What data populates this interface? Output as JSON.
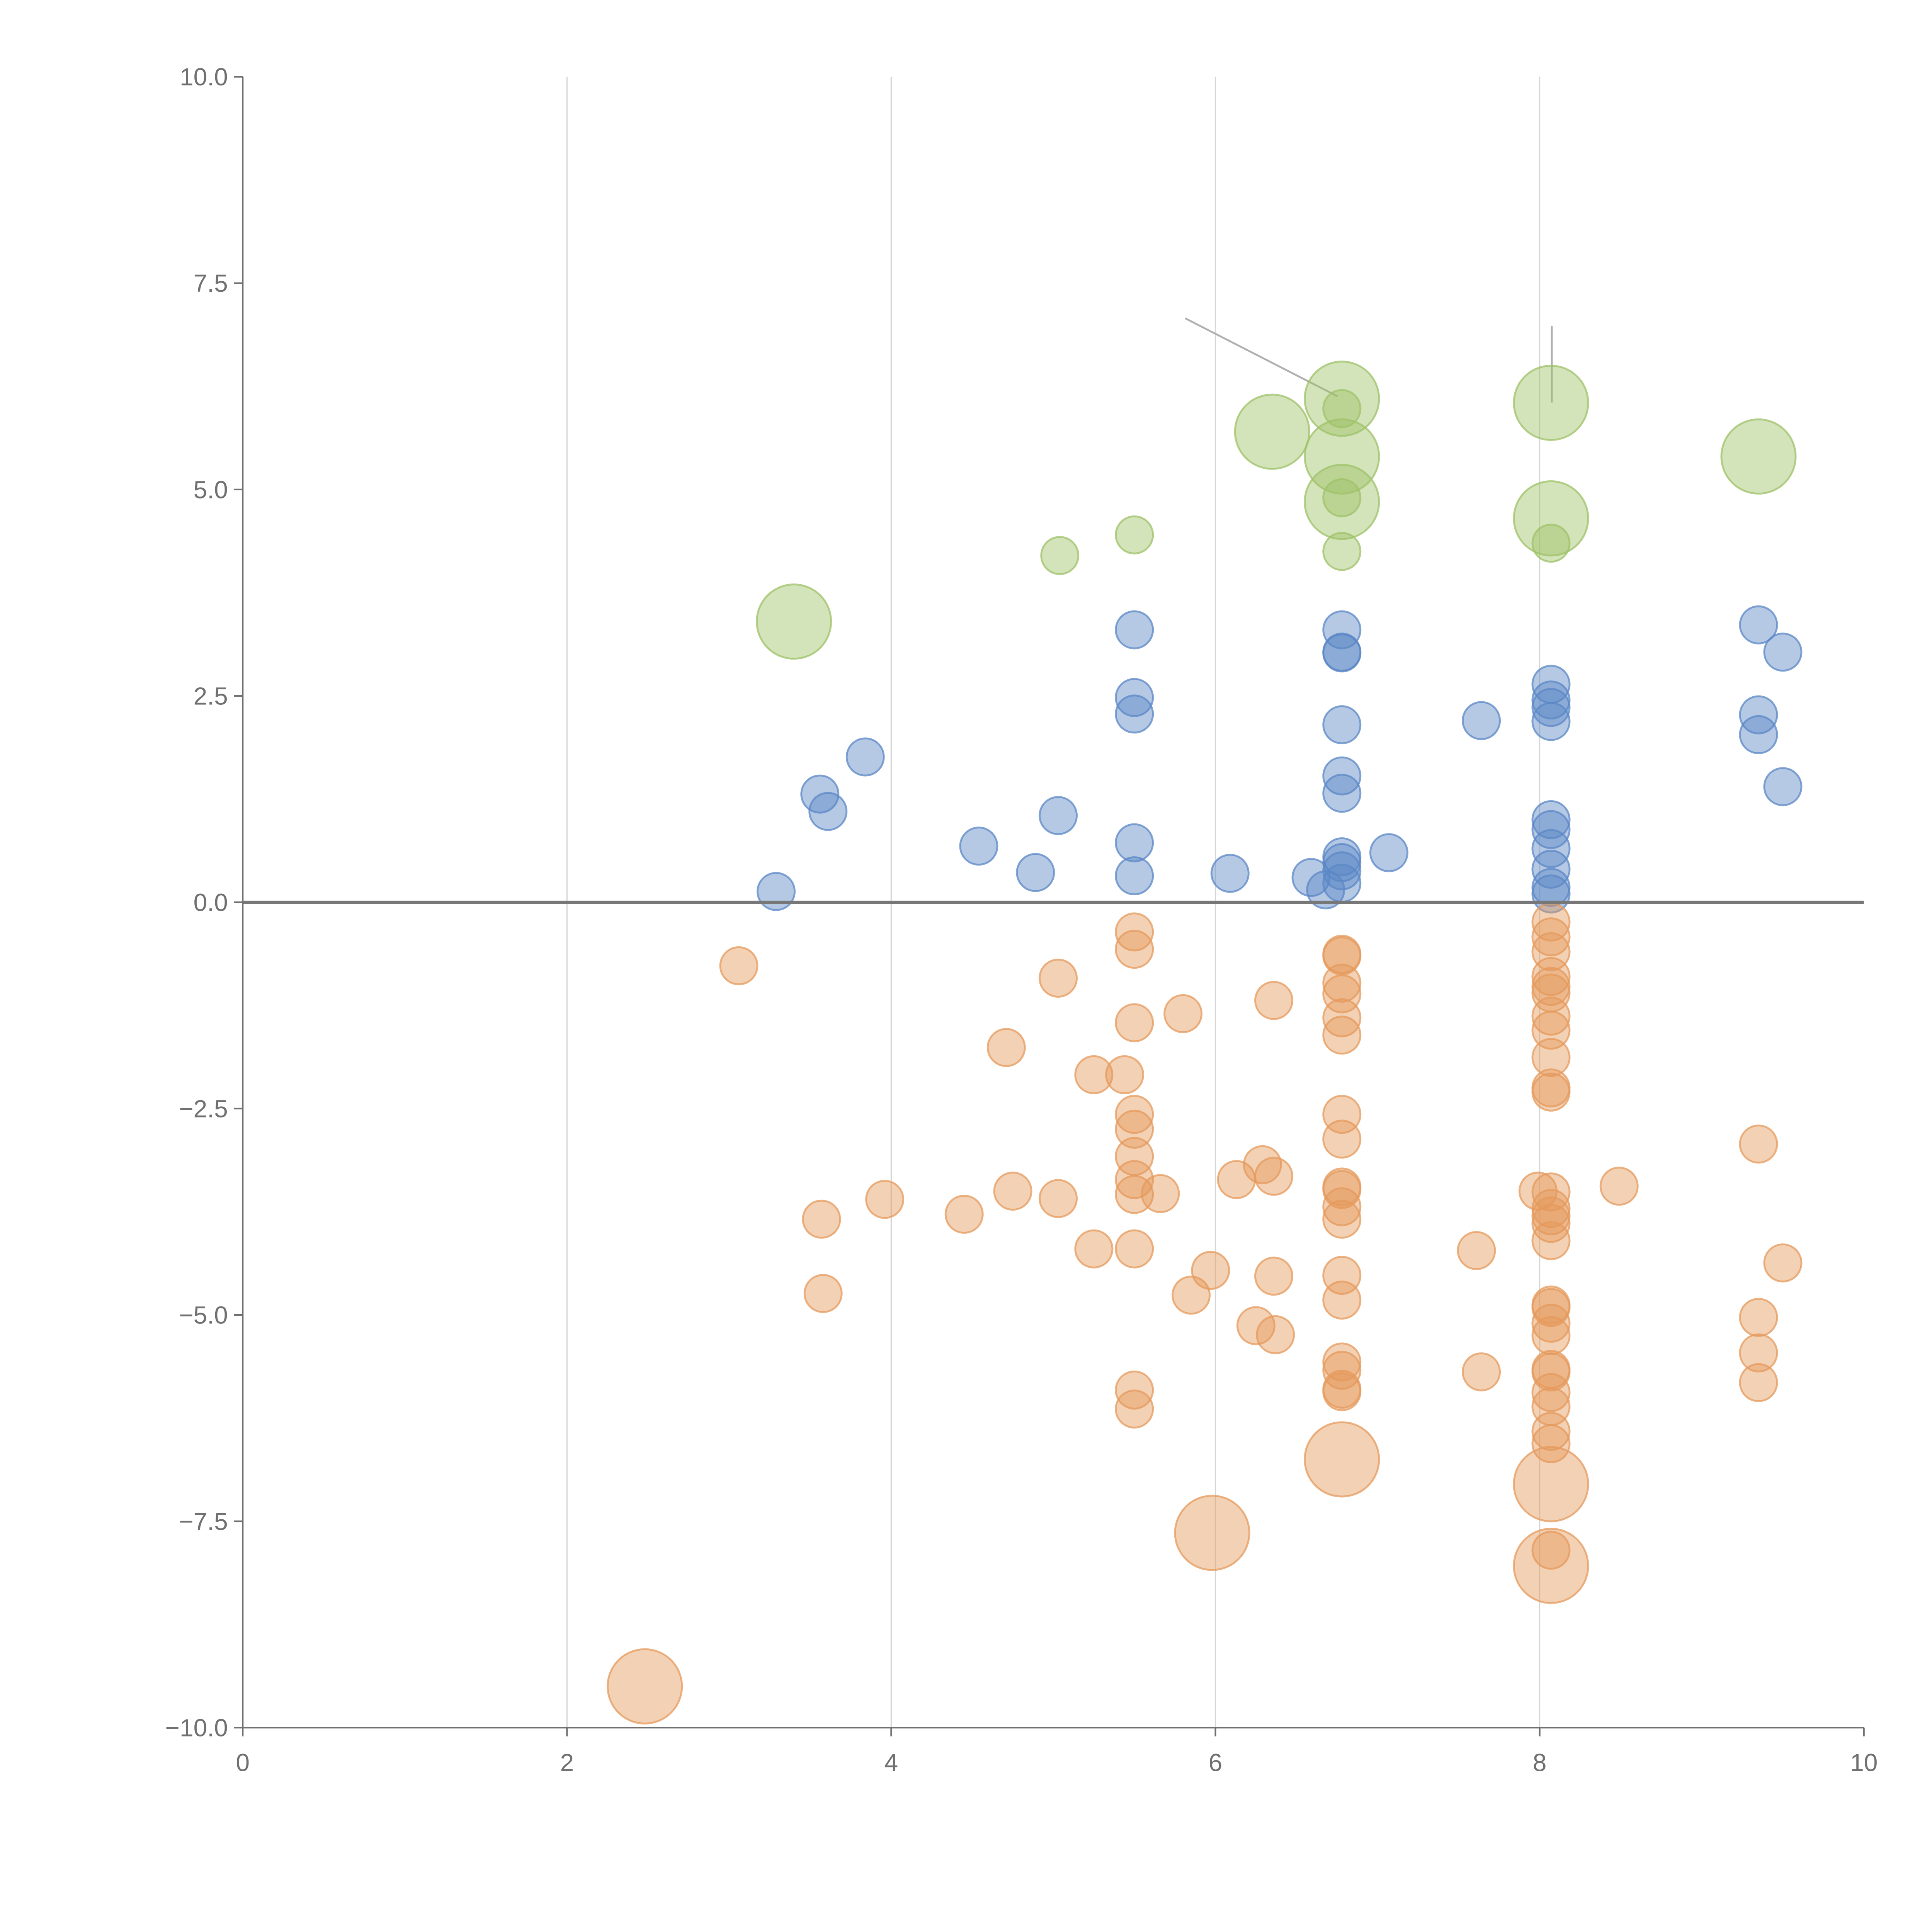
{
  "chart_data": {
    "type": "scatter",
    "title": "",
    "xlabel": "",
    "ylabel": "",
    "xlim": [
      0,
      10
    ],
    "ylim": [
      -10,
      10
    ],
    "x_ticks": [
      "0",
      "2",
      "4",
      "6",
      "8",
      "10"
    ],
    "y_ticks": [
      "10.0",
      "7.5",
      "5.0",
      "2.5",
      "0.0",
      "−2.5",
      "−5.0",
      "−7.5",
      "−10.0"
    ],
    "grid": "vertical",
    "zero_line": true,
    "legend": "none",
    "series": [
      {
        "name": "green",
        "color": "#9dc267",
        "points": [
          [
            3.4,
            3.4,
            4
          ],
          [
            5.04,
            4.2,
            1
          ],
          [
            5.5,
            4.45,
            1
          ],
          [
            6.35,
            5.7,
            4
          ],
          [
            6.78,
            6.1,
            4
          ],
          [
            6.78,
            5.98,
            1
          ],
          [
            6.78,
            5.4,
            4
          ],
          [
            6.78,
            4.85,
            4
          ],
          [
            6.78,
            4.9,
            1
          ],
          [
            6.78,
            4.25,
            1
          ],
          [
            8.07,
            6.05,
            4
          ],
          [
            8.07,
            4.65,
            4
          ],
          [
            8.07,
            4.35,
            1
          ],
          [
            9.35,
            5.4,
            4
          ]
        ]
      },
      {
        "name": "blue",
        "color": "#5b87c5",
        "points": [
          [
            3.29,
            0.13,
            1
          ],
          [
            3.56,
            1.31,
            1
          ],
          [
            3.61,
            1.1,
            1
          ],
          [
            3.84,
            1.76,
            1
          ],
          [
            4.54,
            0.68,
            1
          ],
          [
            4.89,
            0.36,
            1
          ],
          [
            5.03,
            1.05,
            1
          ],
          [
            5.5,
            3.3,
            1
          ],
          [
            5.5,
            2.48,
            1
          ],
          [
            5.5,
            2.28,
            1
          ],
          [
            5.5,
            0.72,
            1
          ],
          [
            5.5,
            0.32,
            1
          ],
          [
            6.09,
            0.35,
            1
          ],
          [
            6.59,
            0.3,
            1
          ],
          [
            6.68,
            0.15,
            1
          ],
          [
            6.78,
            3.3,
            1
          ],
          [
            6.78,
            3.03,
            1
          ],
          [
            6.78,
            3.02,
            1
          ],
          [
            6.78,
            2.15,
            1
          ],
          [
            6.78,
            1.53,
            1
          ],
          [
            6.78,
            1.32,
            1
          ],
          [
            6.78,
            0.55,
            1
          ],
          [
            6.78,
            0.48,
            1
          ],
          [
            6.78,
            0.38,
            1
          ],
          [
            6.78,
            0.23,
            1
          ],
          [
            7.07,
            0.6,
            1
          ],
          [
            7.64,
            2.2,
            1
          ],
          [
            8.07,
            2.64,
            1
          ],
          [
            8.07,
            2.45,
            1
          ],
          [
            8.07,
            2.36,
            1
          ],
          [
            8.07,
            2.19,
            1
          ],
          [
            8.07,
            1.0,
            1
          ],
          [
            8.07,
            0.88,
            1
          ],
          [
            8.07,
            0.65,
            1
          ],
          [
            8.07,
            0.4,
            1
          ],
          [
            8.07,
            0.18,
            1
          ],
          [
            8.07,
            0.1,
            1
          ],
          [
            9.35,
            3.36,
            1
          ],
          [
            9.5,
            3.03,
            1
          ],
          [
            9.35,
            2.27,
            1
          ],
          [
            9.35,
            2.03,
            1
          ],
          [
            9.5,
            1.4,
            1
          ]
        ]
      },
      {
        "name": "orange",
        "color": "#e59a5c",
        "points": [
          [
            2.48,
            -9.5,
            4
          ],
          [
            3.06,
            -0.77,
            1
          ],
          [
            3.57,
            -3.84,
            1
          ],
          [
            3.58,
            -4.74,
            1
          ],
          [
            3.96,
            -3.6,
            1
          ],
          [
            4.45,
            -3.78,
            1
          ],
          [
            4.71,
            -1.76,
            1
          ],
          [
            4.75,
            -3.5,
            1
          ],
          [
            5.03,
            -0.92,
            1
          ],
          [
            5.03,
            -3.59,
            1
          ],
          [
            5.25,
            -2.09,
            1
          ],
          [
            5.25,
            -4.2,
            1
          ],
          [
            5.44,
            -2.09,
            1
          ],
          [
            5.5,
            -0.36,
            1
          ],
          [
            5.5,
            -0.57,
            1
          ],
          [
            5.5,
            -1.46,
            1
          ],
          [
            5.5,
            -2.57,
            1
          ],
          [
            5.5,
            -2.75,
            1
          ],
          [
            5.5,
            -3.08,
            1
          ],
          [
            5.5,
            -3.36,
            1
          ],
          [
            5.5,
            -3.54,
            1
          ],
          [
            5.5,
            -4.2,
            1
          ],
          [
            5.5,
            -5.91,
            1
          ],
          [
            5.5,
            -6.14,
            1
          ],
          [
            5.66,
            -3.53,
            1
          ],
          [
            5.8,
            -1.35,
            1
          ],
          [
            5.85,
            -4.76,
            1
          ],
          [
            5.97,
            -4.46,
            1
          ],
          [
            5.98,
            -7.64,
            4
          ],
          [
            6.13,
            -3.36,
            1
          ],
          [
            6.25,
            -5.13,
            1
          ],
          [
            6.29,
            -3.18,
            1
          ],
          [
            6.36,
            -1.19,
            1
          ],
          [
            6.36,
            -3.32,
            1
          ],
          [
            6.36,
            -4.53,
            1
          ],
          [
            6.37,
            -5.24,
            1
          ],
          [
            6.78,
            -0.63,
            1
          ],
          [
            6.78,
            -0.65,
            1
          ],
          [
            6.78,
            -0.98,
            1
          ],
          [
            6.78,
            -1.11,
            1
          ],
          [
            6.78,
            -1.4,
            1
          ],
          [
            6.78,
            -1.61,
            1
          ],
          [
            6.78,
            -2.57,
            1
          ],
          [
            6.78,
            -2.87,
            1
          ],
          [
            6.78,
            -3.45,
            1
          ],
          [
            6.78,
            -3.48,
            1
          ],
          [
            6.78,
            -3.69,
            1
          ],
          [
            6.78,
            -3.84,
            1
          ],
          [
            6.78,
            -4.52,
            1
          ],
          [
            6.78,
            -4.82,
            1
          ],
          [
            6.78,
            -5.57,
            1
          ],
          [
            6.78,
            -5.67,
            1
          ],
          [
            6.78,
            -5.9,
            1
          ],
          [
            6.78,
            -5.93,
            1
          ],
          [
            6.78,
            -6.75,
            4
          ],
          [
            7.61,
            -4.22,
            1
          ],
          [
            7.64,
            -5.69,
            1
          ],
          [
            7.99,
            -3.5,
            1
          ],
          [
            8.07,
            -0.24,
            1
          ],
          [
            8.07,
            -0.42,
            1
          ],
          [
            8.07,
            -0.6,
            1
          ],
          [
            8.07,
            -0.9,
            1
          ],
          [
            8.07,
            -1.02,
            1
          ],
          [
            8.07,
            -1.1,
            1
          ],
          [
            8.07,
            -1.38,
            1
          ],
          [
            8.07,
            -1.55,
            1
          ],
          [
            8.07,
            -1.88,
            1
          ],
          [
            8.07,
            -2.25,
            1
          ],
          [
            8.07,
            -2.3,
            1
          ],
          [
            8.07,
            -3.51,
            1
          ],
          [
            8.07,
            -3.71,
            1
          ],
          [
            8.07,
            -3.8,
            1
          ],
          [
            8.07,
            -3.89,
            1
          ],
          [
            8.07,
            -4.1,
            1
          ],
          [
            8.07,
            -4.88,
            1
          ],
          [
            8.07,
            -4.91,
            1
          ],
          [
            8.07,
            -5.1,
            1
          ],
          [
            8.07,
            -5.25,
            1
          ],
          [
            8.07,
            -5.66,
            1
          ],
          [
            8.07,
            -5.69,
            1
          ],
          [
            8.07,
            -5.94,
            1
          ],
          [
            8.07,
            -6.11,
            1
          ],
          [
            8.07,
            -6.41,
            1
          ],
          [
            8.07,
            -6.56,
            1
          ],
          [
            8.07,
            -7.05,
            4
          ],
          [
            8.07,
            -8.04,
            4
          ],
          [
            8.07,
            -7.85,
            1
          ],
          [
            8.49,
            -3.44,
            1
          ],
          [
            9.35,
            -2.93,
            1
          ],
          [
            9.5,
            -4.37,
            1
          ],
          [
            9.35,
            -5.03,
            1
          ],
          [
            9.35,
            -5.46,
            1
          ],
          [
            9.35,
            -5.82,
            1
          ]
        ]
      }
    ]
  }
}
